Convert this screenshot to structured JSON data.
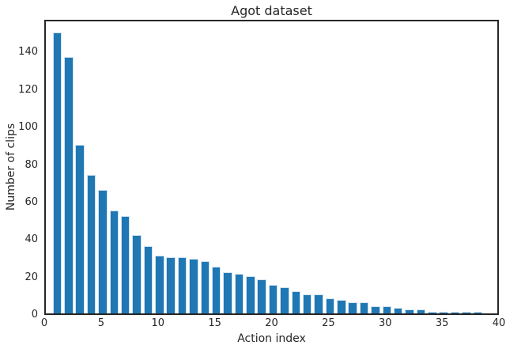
{
  "chart_data": {
    "type": "bar",
    "title": "Agot dataset",
    "xlabel": "Action index",
    "ylabel": "Number of clips",
    "x": [
      1,
      2,
      3,
      4,
      5,
      6,
      7,
      8,
      9,
      10,
      11,
      12,
      13,
      14,
      15,
      16,
      17,
      18,
      19,
      20,
      21,
      22,
      23,
      24,
      25,
      26,
      27,
      28,
      29,
      30,
      31,
      32,
      33,
      34,
      35,
      36,
      37,
      38
    ],
    "values": [
      150,
      137,
      90,
      74,
      66,
      55,
      52,
      42,
      36,
      31,
      30,
      30,
      29,
      28,
      25,
      22,
      21,
      20,
      18,
      15,
      14,
      12,
      10,
      10,
      8,
      7,
      6,
      6,
      4,
      4,
      3,
      2,
      2,
      1,
      1,
      1,
      1,
      1
    ],
    "xlim": [
      0,
      40
    ],
    "ylim": [
      0,
      157.5
    ],
    "xticks": [
      0,
      5,
      10,
      15,
      20,
      25,
      30,
      35,
      40
    ],
    "yticks": [
      0,
      20,
      40,
      60,
      80,
      100,
      120,
      140
    ],
    "grid": false,
    "legend_position": "none",
    "bar_color": "#1f77b4",
    "bar_edge_color": "#cfe2f1",
    "spine_color": "#262626",
    "text_color": "#262626",
    "background_color": "#ffffff",
    "bar_width_fraction": 0.8
  }
}
